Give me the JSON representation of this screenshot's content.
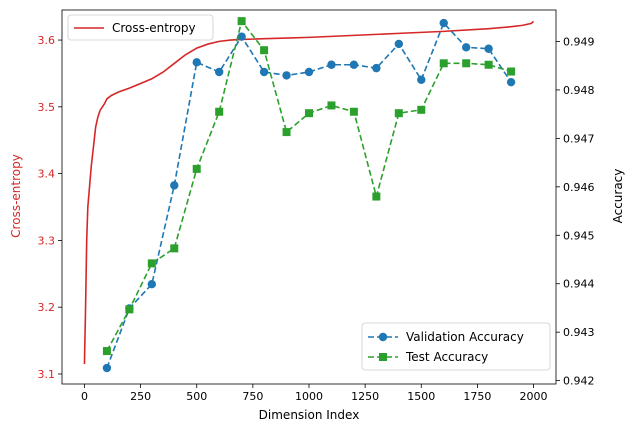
{
  "chart_data": {
    "type": "line",
    "title": "",
    "xlabel": "Dimension Index",
    "ylabel_left": "Cross-entropy",
    "ylabel_right": "Accuracy",
    "xlim": [
      -100,
      2100
    ],
    "ylim_left": [
      3.085,
      3.645
    ],
    "ylim_right": [
      0.94193,
      0.94965
    ],
    "x_ticks": [
      0,
      250,
      500,
      750,
      1000,
      1250,
      1500,
      1750,
      2000
    ],
    "y_left_ticks": [
      3.1,
      3.2,
      3.3,
      3.4,
      3.5,
      3.6
    ],
    "y_right_ticks": [
      0.942,
      0.943,
      0.944,
      0.945,
      0.946,
      0.947,
      0.948,
      0.949
    ],
    "colors": {
      "cross_entropy": "#d62728",
      "validation": "#1f77b4",
      "test": "#2ca02c",
      "left_axis_text": "#d62728",
      "axis": "#000000"
    },
    "legend_top_left": [
      {
        "label": "Cross-entropy",
        "series": "cross_entropy"
      }
    ],
    "legend_bottom_right": [
      {
        "label": "Validation Accuracy",
        "series": "validation"
      },
      {
        "label": "Test Accuracy",
        "series": "test"
      }
    ],
    "series": [
      {
        "name": "Cross-entropy",
        "key": "cross_entropy",
        "axis": "left",
        "style": "solid",
        "marker": "none",
        "x": [
          0,
          5,
          10,
          15,
          20,
          30,
          40,
          50,
          60,
          70,
          80,
          90,
          100,
          120,
          150,
          200,
          250,
          300,
          350,
          400,
          450,
          500,
          550,
          600,
          650,
          700,
          800,
          900,
          1000,
          1200,
          1400,
          1600,
          1800,
          1900,
          1950,
          1990,
          2000
        ],
        "y": [
          3.115,
          3.2,
          3.3,
          3.35,
          3.37,
          3.41,
          3.44,
          3.47,
          3.485,
          3.495,
          3.5,
          3.505,
          3.512,
          3.517,
          3.522,
          3.528,
          3.535,
          3.542,
          3.552,
          3.565,
          3.578,
          3.588,
          3.594,
          3.598,
          3.6,
          3.601,
          3.602,
          3.603,
          3.604,
          3.607,
          3.61,
          3.613,
          3.617,
          3.62,
          3.622,
          3.625,
          3.628
        ]
      },
      {
        "name": "Validation Accuracy",
        "key": "validation",
        "axis": "right",
        "style": "dashed",
        "marker": "circle",
        "x": [
          100,
          200,
          300,
          400,
          500,
          600,
          700,
          800,
          900,
          1000,
          1100,
          1200,
          1300,
          1400,
          1500,
          1600,
          1700,
          1800,
          1900
        ],
        "y": [
          0.94226,
          0.94349,
          0.94399,
          0.94603,
          0.94857,
          0.94837,
          0.9491,
          0.94837,
          0.9483,
          0.94837,
          0.94852,
          0.94852,
          0.94845,
          0.94895,
          0.94821,
          0.94938,
          0.94888,
          0.94885,
          0.94816
        ]
      },
      {
        "name": "Test Accuracy",
        "key": "test",
        "axis": "right",
        "style": "dashed",
        "marker": "square",
        "x": [
          100,
          200,
          300,
          400,
          500,
          600,
          700,
          800,
          900,
          1000,
          1100,
          1200,
          1300,
          1400,
          1500,
          1600,
          1700,
          1800,
          1900
        ],
        "y": [
          0.94261,
          0.94347,
          0.94442,
          0.94473,
          0.94637,
          0.94755,
          0.94942,
          0.94882,
          0.94713,
          0.94752,
          0.94768,
          0.94755,
          0.9458,
          0.94752,
          0.94759,
          0.94855,
          0.94855,
          0.94852,
          0.94838
        ]
      }
    ]
  }
}
